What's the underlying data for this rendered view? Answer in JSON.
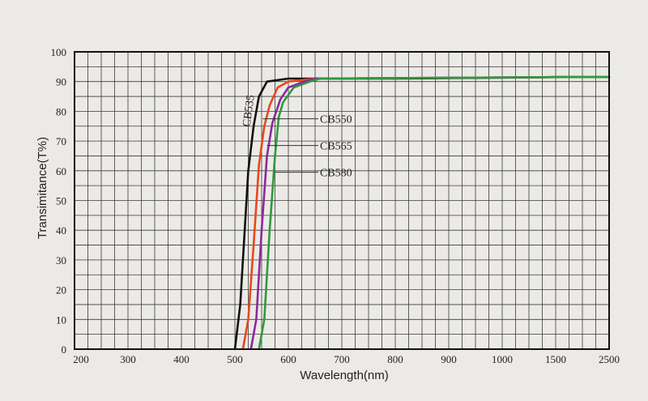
{
  "chart_data": {
    "type": "line",
    "title": "",
    "xlabel": "Wavelength(nm)",
    "ylabel": "Transimitance(T%)",
    "x_ticks": [
      "200",
      "300",
      "400",
      "500",
      "600",
      "700",
      "800",
      "900",
      "1000",
      "1500",
      "2500"
    ],
    "y_ticks": [
      "0",
      "10",
      "20",
      "30",
      "40",
      "50",
      "60",
      "70",
      "80",
      "90",
      "100"
    ],
    "ylim": [
      0,
      100
    ],
    "x_scale": "nonlinear (tick labels equally spaced)",
    "grid": true,
    "series": [
      {
        "name": "CB535",
        "color": "#111111",
        "points": [
          [
            500,
            0
          ],
          [
            510,
            15
          ],
          [
            520,
            45
          ],
          [
            525,
            60
          ],
          [
            535,
            75
          ],
          [
            545,
            85
          ],
          [
            560,
            90
          ],
          [
            600,
            91
          ],
          [
            800,
            91
          ],
          [
            1500,
            91.5
          ],
          [
            2500,
            91.5
          ]
        ]
      },
      {
        "name": "CB550",
        "color": "#e8481e",
        "points": [
          [
            515,
            0
          ],
          [
            525,
            10
          ],
          [
            535,
            35
          ],
          [
            545,
            62
          ],
          [
            555,
            75
          ],
          [
            565,
            82
          ],
          [
            580,
            88
          ],
          [
            600,
            90
          ],
          [
            650,
            91
          ],
          [
            1500,
            91.5
          ],
          [
            2500,
            91.5
          ]
        ]
      },
      {
        "name": "CB565",
        "color": "#8a2a9c",
        "points": [
          [
            530,
            0
          ],
          [
            540,
            10
          ],
          [
            550,
            40
          ],
          [
            560,
            65
          ],
          [
            570,
            76
          ],
          [
            585,
            84
          ],
          [
            600,
            88
          ],
          [
            630,
            90
          ],
          [
            650,
            91
          ],
          [
            1500,
            91.5
          ],
          [
            2500,
            91.5
          ]
        ]
      },
      {
        "name": "CB580",
        "color": "#2e9a3c",
        "points": [
          [
            545,
            0
          ],
          [
            555,
            10
          ],
          [
            565,
            40
          ],
          [
            575,
            65
          ],
          [
            582,
            78
          ],
          [
            590,
            83
          ],
          [
            610,
            88
          ],
          [
            640,
            90
          ],
          [
            660,
            91
          ],
          [
            1500,
            91.5
          ],
          [
            2500,
            91.5
          ]
        ]
      }
    ]
  }
}
